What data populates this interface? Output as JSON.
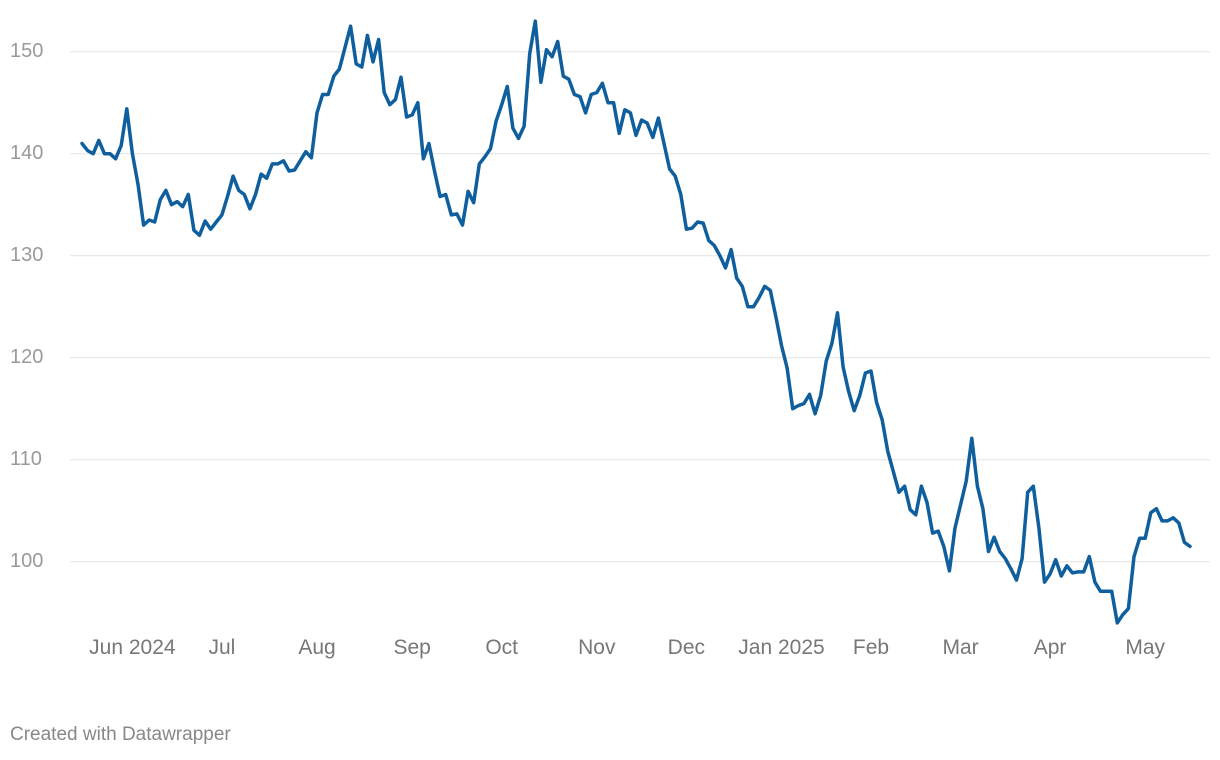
{
  "chart_data": {
    "type": "line",
    "categories": [
      null,
      null,
      null,
      null,
      null,
      null,
      null,
      null,
      null,
      "Jun 2024",
      null,
      null,
      null,
      null,
      null,
      null,
      null,
      null,
      null,
      null,
      null,
      null,
      null,
      null,
      null,
      "Jul",
      null,
      null,
      null,
      null,
      null,
      null,
      null,
      null,
      null,
      null,
      null,
      null,
      null,
      null,
      null,
      null,
      "Aug",
      null,
      null,
      null,
      null,
      null,
      null,
      null,
      null,
      null,
      null,
      null,
      null,
      null,
      null,
      null,
      null,
      "Sep",
      null,
      null,
      null,
      null,
      null,
      null,
      null,
      null,
      null,
      null,
      null,
      null,
      null,
      null,
      null,
      "Oct",
      null,
      null,
      null,
      null,
      null,
      null,
      null,
      null,
      null,
      null,
      null,
      null,
      null,
      null,
      null,
      null,
      "Nov",
      null,
      null,
      null,
      null,
      null,
      null,
      null,
      null,
      null,
      null,
      null,
      null,
      null,
      null,
      null,
      "Dec",
      null,
      null,
      null,
      null,
      null,
      null,
      null,
      null,
      null,
      null,
      null,
      null,
      null,
      null,
      null,
      null,
      "Jan 2025",
      null,
      null,
      null,
      null,
      null,
      null,
      null,
      null,
      null,
      null,
      null,
      null,
      null,
      null,
      null,
      "Feb",
      null,
      null,
      null,
      null,
      null,
      null,
      null,
      null,
      null,
      null,
      null,
      null,
      null,
      null,
      null,
      "Mar",
      null,
      null,
      null,
      null,
      null,
      null,
      null,
      null,
      null,
      null,
      null,
      null,
      null,
      null,
      null,
      "Apr",
      null,
      null,
      null,
      null,
      null,
      null,
      null,
      null,
      null,
      null,
      null,
      null,
      null,
      null,
      null,
      null,
      "May",
      null,
      null,
      null,
      null,
      null,
      null,
      null,
      null
    ],
    "series": [
      {
        "color": "#0f5f9e",
        "values": [
          141,
          140.3,
          140,
          141.3,
          140,
          140,
          139.5,
          140.8,
          144.4,
          140,
          137,
          133,
          133.5,
          133.3,
          135.5,
          136.4,
          135,
          135.3,
          134.8,
          136,
          132.5,
          132,
          133.4,
          132.6,
          133.3,
          134,
          135.8,
          137.8,
          136.4,
          136,
          134.6,
          136,
          138,
          137.6,
          139,
          139,
          139.3,
          138.3,
          138.4,
          139.3,
          140.2,
          139.6,
          144,
          145.8,
          145.8,
          147.6,
          148.3,
          150.4,
          152.5,
          148.8,
          148.5,
          151.6,
          149,
          151.2,
          146,
          144.8,
          145.3,
          147.5,
          143.6,
          143.8,
          145,
          139.5,
          141,
          138.3,
          135.8,
          136,
          134,
          134.1,
          133,
          136.3,
          135.2,
          139,
          139.7,
          140.5,
          143.2,
          144.8,
          146.6,
          142.5,
          141.5,
          142.7,
          149.8,
          153,
          147,
          150.2,
          149.5,
          151,
          147.6,
          147.3,
          145.8,
          145.6,
          144,
          145.8,
          146,
          146.9,
          145,
          145,
          142,
          144.3,
          144,
          141.8,
          143.3,
          143,
          141.6,
          143.5,
          141,
          138.5,
          137.8,
          136,
          132.6,
          132.7,
          133.3,
          133.2,
          131.5,
          131,
          130,
          128.8,
          130.6,
          127.8,
          127,
          125,
          125,
          125.9,
          127,
          126.6,
          124,
          121.2,
          119,
          115,
          115.3,
          115.5,
          116.4,
          114.5,
          116.3,
          119.7,
          121.4,
          124.4,
          119.1,
          116.7,
          114.8,
          116.3,
          118.5,
          118.7,
          115.6,
          113.9,
          110.8,
          108.8,
          106.8,
          107.4,
          105.1,
          104.6,
          107.4,
          105.8,
          102.8,
          103,
          101.5,
          99.1,
          103.3,
          105.6,
          107.9,
          112.1,
          107.4,
          105.2,
          101,
          102.4,
          101,
          100.3,
          99.3,
          98.2,
          100.3,
          106.8,
          107.4,
          103.3,
          98,
          98.8,
          100.2,
          98.6,
          99.6,
          98.9,
          99,
          99,
          100.5,
          98,
          97.1,
          97.1,
          97.1,
          94,
          94.8,
          95.4,
          100.5,
          102.3,
          102.3,
          104.8,
          105.2,
          104,
          104,
          104.3,
          103.8,
          101.9,
          101.5
        ]
      }
    ],
    "ylim": [
      93.5,
      153.5
    ],
    "yticks": [
      100,
      110,
      120,
      130,
      140,
      150
    ],
    "grid": true,
    "credit": "Created with Datawrapper"
  }
}
